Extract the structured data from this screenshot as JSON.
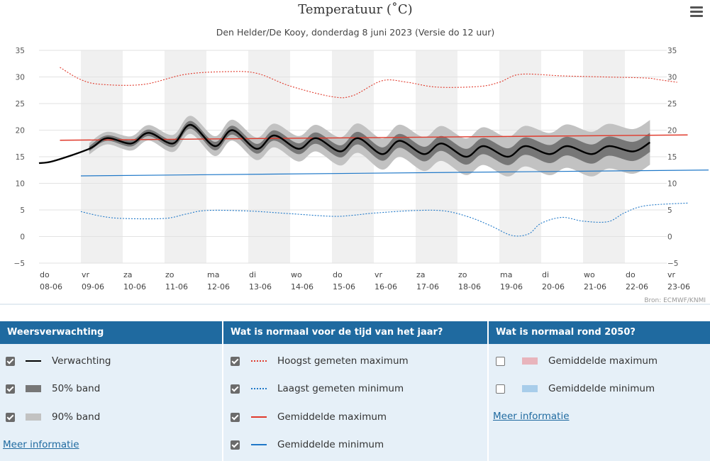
{
  "chart_data": {
    "type": "line",
    "title": "Temperatuur (˚C)",
    "subtitle": "Den Helder/De Kooy, donderdag 8 juni 2023 (Versie do 12 uur)",
    "source": "Bron: ECMWF/KNMI",
    "ylim": [
      -5,
      35
    ],
    "yticks": [
      -5,
      0,
      5,
      10,
      15,
      20,
      25,
      30,
      35
    ],
    "x_days": [
      {
        "day": "do",
        "date": "08-06"
      },
      {
        "day": "vr",
        "date": "09-06"
      },
      {
        "day": "za",
        "date": "10-06"
      },
      {
        "day": "zo",
        "date": "11-06"
      },
      {
        "day": "ma",
        "date": "12-06"
      },
      {
        "day": "di",
        "date": "13-06"
      },
      {
        "day": "wo",
        "date": "14-06"
      },
      {
        "day": "do",
        "date": "15-06"
      },
      {
        "day": "vr",
        "date": "16-06"
      },
      {
        "day": "za",
        "date": "17-06"
      },
      {
        "day": "zo",
        "date": "18-06"
      },
      {
        "day": "ma",
        "date": "19-06"
      },
      {
        "day": "di",
        "date": "20-06"
      },
      {
        "day": "wo",
        "date": "21-06"
      },
      {
        "day": "do",
        "date": "22-06"
      },
      {
        "day": "vr",
        "date": "23-06"
      }
    ],
    "forecast_daily_max": [
      14.0,
      18.5,
      19.5,
      21.0,
      20.0,
      19.0,
      18.5,
      18.5,
      18.0,
      17.5,
      17.0,
      17.0,
      17.0,
      17.0,
      17.5
    ],
    "forecast_daily_min": [
      13.2,
      16.5,
      17.5,
      17.5,
      17.0,
      16.5,
      16.5,
      16.0,
      15.5,
      15.5,
      15.0,
      15.0,
      15.5,
      15.5,
      16.0
    ],
    "record_max": [
      [
        0.5,
        31.8
      ],
      [
        1.0,
        29.5
      ],
      [
        1.5,
        28.6
      ],
      [
        2.5,
        28.6
      ],
      [
        3.5,
        30.5
      ],
      [
        4.5,
        31.0
      ],
      [
        5.2,
        30.7
      ],
      [
        6.0,
        28.3
      ],
      [
        7.0,
        26.3
      ],
      [
        7.5,
        26.5
      ],
      [
        8.2,
        29.3
      ],
      [
        8.8,
        29.0
      ],
      [
        9.5,
        28.1
      ],
      [
        10.5,
        28.2
      ],
      [
        11.0,
        29.0
      ],
      [
        11.5,
        30.5
      ],
      [
        12.5,
        30.2
      ],
      [
        13.5,
        30.0
      ],
      [
        14.5,
        29.8
      ],
      [
        14.8,
        29.5
      ],
      [
        15.25,
        29.0
      ]
    ],
    "record_min": [
      [
        1.0,
        4.7
      ],
      [
        1.5,
        3.8
      ],
      [
        2.0,
        3.4
      ],
      [
        3.0,
        3.4
      ],
      [
        3.5,
        4.2
      ],
      [
        4.0,
        4.9
      ],
      [
        5.0,
        4.8
      ],
      [
        6.0,
        4.3
      ],
      [
        7.0,
        3.8
      ],
      [
        7.5,
        4.0
      ],
      [
        8.0,
        4.4
      ],
      [
        9.0,
        4.9
      ],
      [
        9.7,
        4.8
      ],
      [
        10.3,
        3.6
      ],
      [
        10.8,
        2.0
      ],
      [
        11.3,
        0.2
      ],
      [
        11.7,
        0.5
      ],
      [
        12.0,
        2.5
      ],
      [
        12.5,
        3.6
      ],
      [
        13.0,
        2.9
      ],
      [
        13.6,
        2.8
      ],
      [
        14.0,
        4.5
      ],
      [
        14.5,
        5.8
      ],
      [
        15.5,
        6.3
      ]
    ],
    "mean_max": {
      "start": [
        0.5,
        18.1
      ],
      "end": [
        15.5,
        19.1
      ]
    },
    "mean_min": {
      "start": [
        1.0,
        11.4
      ],
      "end": [
        16.0,
        12.5
      ]
    },
    "grid": true
  },
  "legend": {
    "columns": [
      {
        "title": "Weersverwachting",
        "items": [
          {
            "label": "Verwachting",
            "checked": true,
            "swatch": "line",
            "color": "#000000"
          },
          {
            "label": "50% band",
            "checked": true,
            "swatch": "box",
            "color": "#777777"
          },
          {
            "label": "90% band",
            "checked": true,
            "swatch": "box",
            "color": "#c2c2c2"
          }
        ],
        "link": "Meer informatie"
      },
      {
        "title": "Wat is normaal voor de tijd van het jaar?",
        "items": [
          {
            "label": "Hoogst gemeten maximum",
            "checked": true,
            "swatch": "dotted",
            "color": "#e0392b"
          },
          {
            "label": "Laagst gemeten minimum",
            "checked": true,
            "swatch": "dotted",
            "color": "#1f78c8"
          },
          {
            "label": "Gemiddelde maximum",
            "checked": true,
            "swatch": "line",
            "color": "#e0392b"
          },
          {
            "label": "Gemiddelde minimum",
            "checked": true,
            "swatch": "line",
            "color": "#1f78c8"
          }
        ]
      },
      {
        "title": "Wat is normaal rond 2050?",
        "items": [
          {
            "label": "Gemiddelde maximum",
            "checked": false,
            "swatch": "box",
            "color": "#e8b4bc"
          },
          {
            "label": "Gemiddelde minimum",
            "checked": false,
            "swatch": "box",
            "color": "#a8cdea"
          }
        ],
        "link": "Meer informatie"
      }
    ]
  },
  "colors": {
    "header_bg": "#1f6aa0",
    "panel_bg": "#e6f0f8",
    "stripe": "#f0f0f0",
    "band90": "#c2c2c2",
    "band50": "#777777",
    "record_max": "#e0392b",
    "record_min": "#1f78c8",
    "mean_max": "#e0392b",
    "mean_min": "#1f78c8"
  }
}
